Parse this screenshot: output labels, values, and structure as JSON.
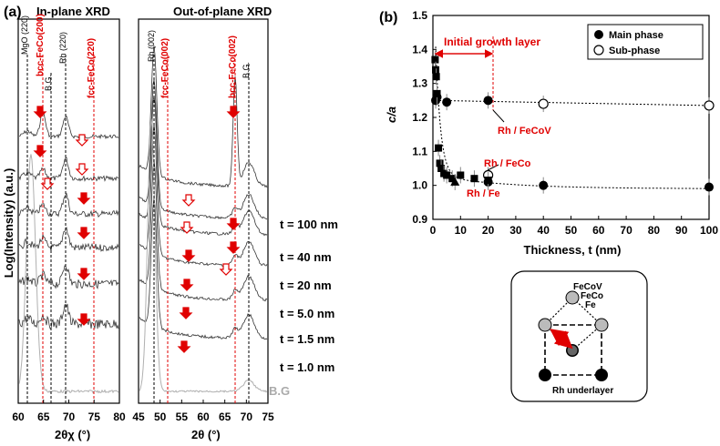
{
  "panel_a": {
    "label": "(a)",
    "left_title": "In-plane XRD",
    "right_title": "Out-of-plane XRD",
    "y_axis_label": "Log(Intensity) (a.u.)",
    "left_xlabel": "2θχ (°)",
    "right_xlabel": "2θ (°)",
    "left_peaks": [
      {
        "text": "MgO (220)",
        "color": "#000000"
      },
      {
        "text": "bcc-FeCo(200)",
        "color": "#e00000"
      },
      {
        "text": "B.G.",
        "color": "#000000"
      },
      {
        "text": "Rh (220)",
        "color": "#000000"
      },
      {
        "text": "fcc-FeCo(220)",
        "color": "#e00000"
      }
    ],
    "right_peaks": [
      {
        "text": "Rh (002)",
        "color": "#000000"
      },
      {
        "text": "fcc-FeCo(002)",
        "color": "#e00000"
      },
      {
        "text": "bcc-FeCo(002)",
        "color": "#e00000"
      },
      {
        "text": "B.G.",
        "color": "#000000"
      }
    ],
    "left_ticks": [
      "60",
      "65",
      "70",
      "75",
      "80"
    ],
    "right_ticks": [
      "45",
      "50",
      "55",
      "60",
      "65",
      "70",
      "75"
    ],
    "thickness_labels": [
      "t = 100 nm",
      "t = 40 nm",
      "t = 20 nm",
      "t = 5.0 nm",
      "t = 1.5 nm",
      "t = 1.0 nm"
    ],
    "bg_label": "B.G"
  },
  "panel_b": {
    "label": "(b)",
    "legend": [
      "Main phase",
      "Sub-phase"
    ],
    "growth_label": "Initial growth layer",
    "annotations": [
      "Rh / FeCoV",
      "Rh / FeCo",
      "Rh / Fe"
    ],
    "diagram_labels": [
      "FeCoV",
      "FeCo",
      "Fe",
      "Rh underlayer"
    ]
  },
  "chart_data": {
    "type": "scatter",
    "title": "",
    "xlabel": "Thickness, t (nm)",
    "ylabel": "c/a",
    "xlim": [
      0,
      100
    ],
    "ylim": [
      0.9,
      1.5
    ],
    "x_ticks": [
      "0",
      "10",
      "20",
      "30",
      "40",
      "50",
      "60",
      "70",
      "80",
      "90",
      "100"
    ],
    "y_ticks": [
      "0.9",
      "1.0",
      "1.1",
      "1.2",
      "1.3",
      "1.4",
      "1.5"
    ],
    "series": [
      {
        "name": "Rh/FeCoV main",
        "marker": "circle-filled",
        "points": [
          [
            1.0,
            1.25
          ],
          [
            1.5,
            1.26
          ],
          [
            5.0,
            1.245
          ],
          [
            20.0,
            1.25
          ]
        ]
      },
      {
        "name": "Rh/FeCoV sub",
        "marker": "circle-open",
        "points": [
          [
            40.0,
            1.24
          ],
          [
            100.0,
            1.235
          ]
        ]
      },
      {
        "name": "Rh/FeCo main",
        "marker": "circle-filled",
        "points": [
          [
            20.0,
            1.01
          ],
          [
            40.0,
            1.0
          ],
          [
            100.0,
            0.995
          ]
        ]
      },
      {
        "name": "Rh/FeCo sub",
        "marker": "circle-open",
        "points": [
          [
            20.0,
            1.03
          ]
        ]
      },
      {
        "name": "Rh/Fe",
        "marker": "square-filled",
        "points": [
          [
            0.8,
            1.37
          ],
          [
            1.0,
            1.34
          ],
          [
            1.2,
            1.32
          ],
          [
            1.5,
            1.27
          ],
          [
            2.0,
            1.11
          ],
          [
            2.5,
            1.065
          ],
          [
            3.0,
            1.05
          ],
          [
            4.0,
            1.035
          ],
          [
            5.0,
            1.03
          ],
          [
            7.0,
            1.02
          ],
          [
            10.0,
            1.03
          ],
          [
            15.0,
            1.02
          ],
          [
            20.0,
            1.015
          ]
        ]
      },
      {
        "name": "Rh/Fe triangle",
        "marker": "triangle-filled",
        "points": [
          [
            8.0,
            1.01
          ]
        ]
      }
    ]
  }
}
